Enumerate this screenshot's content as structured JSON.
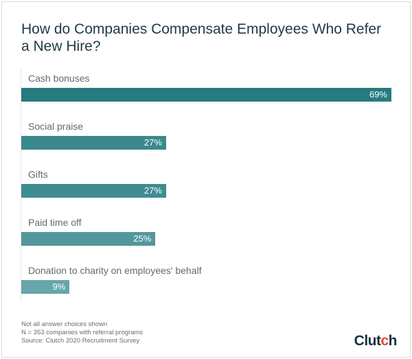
{
  "chart_data": {
    "type": "bar",
    "orientation": "horizontal",
    "title": "How do Companies Compensate Employees Who Refer a New Hire?",
    "categories": [
      "Cash bonuses",
      "Social praise",
      "Gifts",
      "Paid time off",
      "Donation to charity on employees' behalf"
    ],
    "values": [
      69,
      27,
      27,
      25,
      9
    ],
    "value_labels": [
      "69%",
      "27%",
      "27%",
      "25%",
      "9%"
    ],
    "colors": [
      "#267b80",
      "#3b898d",
      "#3f8c90",
      "#52979b",
      "#67a6aa"
    ],
    "unit": "%",
    "xlim": [
      0,
      69
    ],
    "grid": false
  },
  "footnotes": [
    "Not all answer choices shown",
    "N = 353 companies with referral programs",
    "Source: Clutch 2020 Recruitment Survey"
  ],
  "logo": "Clutch"
}
